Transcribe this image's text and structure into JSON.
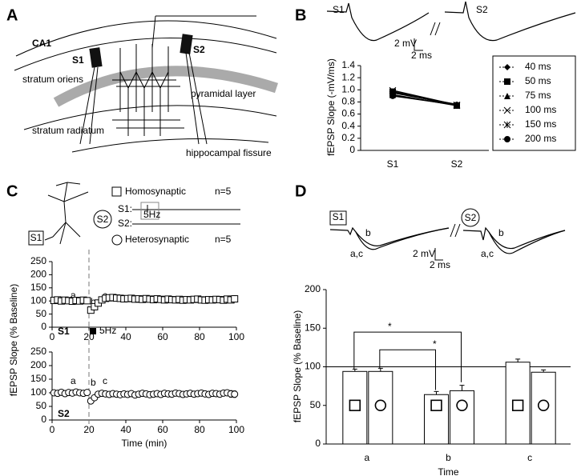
{
  "panel_labels": [
    "A",
    "B",
    "C",
    "D"
  ],
  "diagram_a": {
    "labels": [
      "CA1",
      "S1",
      "S2",
      "stratum oriens",
      "pyramidal layer",
      "stratum radiatum",
      "hippocampal fissure"
    ]
  },
  "traces_b": {
    "labels": [
      "S1",
      "S2"
    ],
    "scale_v": "2 mV",
    "scale_t": "2 ms"
  },
  "legend_c": {
    "neuron_s1": "S1",
    "neuron_s2": "S2",
    "homosynaptic": "Homosynaptic",
    "homosynaptic_n": "n=5",
    "heterosynaptic": "Heterosynaptic",
    "heterosynaptic_n": "n=5",
    "line_s1": "S1:",
    "line_s2": "S2:",
    "stim": "5Hz"
  },
  "traces_d": {
    "labels": [
      "S1",
      "S2",
      "b",
      "a,c",
      "b",
      "a,c"
    ],
    "scale_v": "2 mV",
    "scale_t": "2 ms"
  },
  "chart_data": [
    {
      "type": "line",
      "y_label": "fEPSP Slope (-mV/ms)",
      "categories": [
        "S1",
        "S2"
      ],
      "ylim": [
        0,
        1.4
      ],
      "yticks": [
        0,
        0.2,
        0.4,
        0.6,
        0.8,
        {
          "value": 1,
          "label": "1.0"
        },
        1.2,
        1.4
      ],
      "legend": "right",
      "series": [
        {
          "name": "40 ms",
          "color": "#000000",
          "marker": "diamond",
          "values": [
            0.96,
            0.75
          ]
        },
        {
          "name": "50 ms",
          "color": "#000000",
          "marker": "square",
          "values": [
            0.97,
            0.74
          ]
        },
        {
          "name": "75 ms",
          "color": "#000000",
          "marker": "triangle",
          "values": [
            0.95,
            0.76
          ]
        },
        {
          "name": "100 ms",
          "color": "#000000",
          "marker": "x",
          "values": [
            0.99,
            0.75
          ]
        },
        {
          "name": "150 ms",
          "color": "#000000",
          "marker": "star",
          "values": [
            0.92,
            0.74
          ]
        },
        {
          "name": "200 ms",
          "color": "#000000",
          "marker": "circle",
          "values": [
            0.9,
            0.75
          ]
        }
      ]
    },
    {
      "type": "scatter",
      "y_label": "fEPSP Slope (% Baseline)",
      "xlim": [
        0,
        100
      ],
      "xticks": [
        0,
        20,
        40,
        60,
        80,
        100
      ],
      "ylim": [
        0,
        250
      ],
      "yticks": [
        0,
        50,
        100,
        150,
        200,
        250
      ],
      "vline": 20,
      "annotations": [
        "a",
        "b",
        "c",
        "S1",
        "5Hz"
      ],
      "x": [
        1,
        3,
        5,
        7,
        9,
        11,
        13,
        15,
        17,
        19,
        21,
        23,
        25,
        27,
        29,
        31,
        33,
        35,
        37,
        39,
        41,
        43,
        45,
        47,
        49,
        51,
        53,
        55,
        57,
        59,
        61,
        63,
        65,
        67,
        69,
        71,
        73,
        75,
        77,
        79,
        81,
        83,
        85,
        87,
        89,
        91,
        93,
        95,
        97,
        99
      ],
      "series": [
        {
          "color": "#000000",
          "marker": "open-square",
          "values": [
            102,
            104,
            100,
            103,
            101,
            99,
            102,
            100,
            103,
            101,
            65,
            78,
            92,
            104,
            110,
            112,
            113,
            111,
            110,
            108,
            109,
            110,
            107,
            108,
            106,
            109,
            107,
            105,
            108,
            106,
            104,
            107,
            105,
            104,
            106,
            103,
            105,
            104,
            106,
            107,
            104,
            103,
            105,
            104,
            106,
            105,
            103,
            107,
            104,
            108
          ],
          "errors": [
            8,
            8,
            8,
            8,
            8,
            8,
            8,
            8,
            8,
            8,
            10,
            12,
            10,
            9,
            9,
            9,
            9,
            9,
            9,
            9,
            8,
            8,
            8,
            8,
            8,
            8,
            8,
            8,
            8,
            8,
            8,
            8,
            8,
            8,
            8,
            8,
            8,
            8,
            8,
            8,
            8,
            8,
            8,
            8,
            8,
            8,
            9,
            10,
            10,
            12
          ]
        }
      ]
    },
    {
      "type": "scatter",
      "x_label": "Time (min)",
      "xlim": [
        0,
        100
      ],
      "xticks": [
        0,
        20,
        40,
        60,
        80,
        100
      ],
      "ylim": [
        0,
        250
      ],
      "yticks": [
        0,
        50,
        100,
        150,
        200,
        250
      ],
      "vline": 20,
      "annotations": [
        "a",
        "b",
        "c",
        "S2"
      ],
      "x": [
        1,
        3,
        5,
        7,
        9,
        11,
        13,
        15,
        17,
        19,
        21,
        23,
        25,
        27,
        29,
        31,
        33,
        35,
        37,
        39,
        41,
        43,
        45,
        47,
        49,
        51,
        53,
        55,
        57,
        59,
        61,
        63,
        65,
        67,
        69,
        71,
        73,
        75,
        77,
        79,
        81,
        83,
        85,
        87,
        89,
        91,
        93,
        95,
        97,
        99
      ],
      "series": [
        {
          "color": "#000000",
          "marker": "open-circle",
          "values": [
            100,
            98,
            102,
            97,
            101,
            99,
            103,
            100,
            98,
            101,
            70,
            82,
            95,
            98,
            96,
            94,
            97,
            95,
            93,
            96,
            94,
            97,
            92,
            95,
            98,
            96,
            93,
            95,
            97,
            94,
            98,
            96,
            95,
            99,
            97,
            94,
            96,
            98,
            95,
            97,
            99,
            96,
            94,
            98,
            97,
            95,
            99,
            100,
            96,
            95
          ],
          "errors": [
            6,
            6,
            6,
            6,
            6,
            6,
            6,
            6,
            6,
            6,
            8,
            9,
            7,
            6,
            6,
            6,
            6,
            6,
            6,
            6,
            6,
            6,
            10,
            6,
            6,
            6,
            6,
            6,
            6,
            6,
            6,
            6,
            6,
            6,
            6,
            6,
            6,
            8,
            6,
            6,
            8,
            6,
            6,
            10,
            6,
            6,
            8,
            10,
            12,
            12
          ]
        }
      ]
    },
    {
      "type": "bar",
      "y_label": "fEPSP Slope (% Baseline)",
      "x_label": "Time",
      "categories": [
        "a",
        "b",
        "c"
      ],
      "ylim": [
        0,
        200
      ],
      "yticks": [
        0,
        50,
        100,
        150,
        200
      ],
      "reference_line": 100,
      "annotations": [
        "*",
        "*"
      ],
      "series": [
        {
          "color": "#ffffff",
          "marker": "open-square",
          "values": [
            94,
            64,
            106
          ],
          "errors": [
            3,
            4,
            4
          ]
        },
        {
          "color": "#ffffff",
          "marker": "open-circle",
          "values": [
            94,
            69,
            93
          ],
          "errors": [
            4,
            7,
            3
          ]
        }
      ]
    }
  ]
}
